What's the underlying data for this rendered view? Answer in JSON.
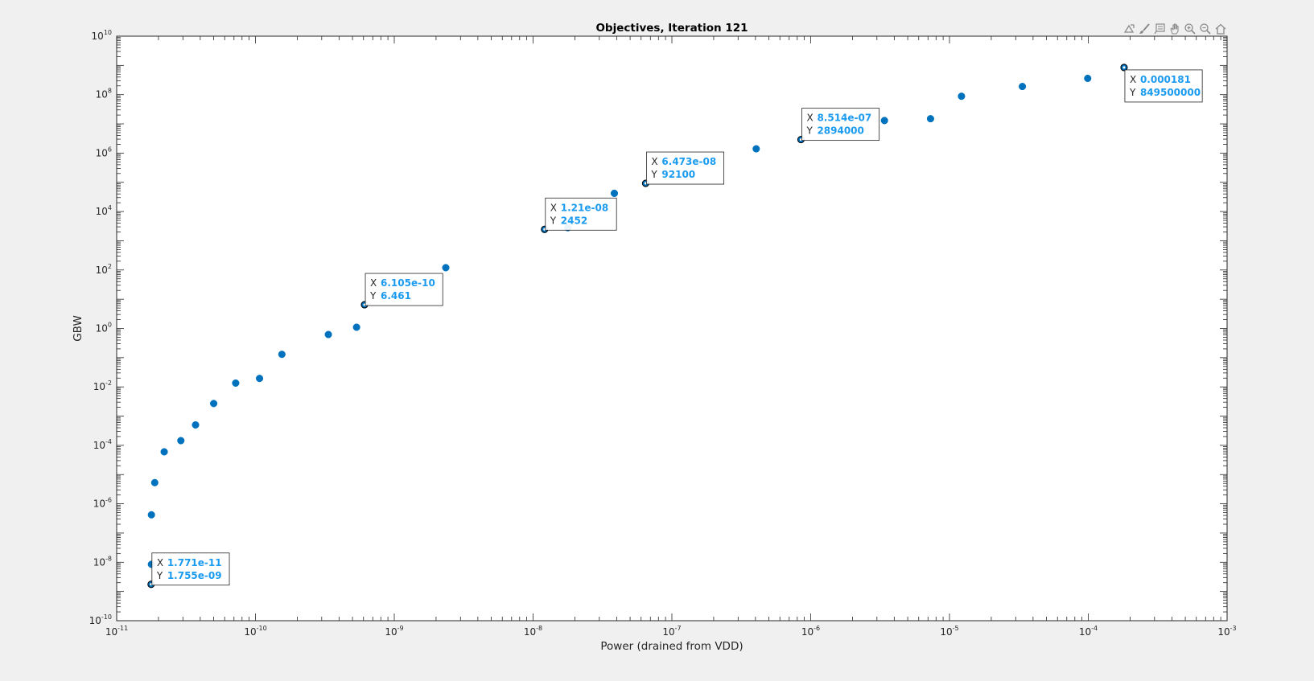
{
  "colors": {
    "background": "#f0f0f0",
    "axes_background": "#ffffff",
    "axis": "#262626",
    "marker": "#0072bd",
    "tooltip_value": "#1a9bf0"
  },
  "toolbar": {
    "icons": [
      "export-icon",
      "brush-icon",
      "datatip-icon",
      "pan-icon",
      "zoom-in-icon",
      "zoom-out-icon",
      "home-icon"
    ]
  },
  "chart_data": {
    "type": "scatter",
    "title": "Objectives, Iteration 121",
    "xlabel": "Power (drained from VDD)",
    "ylabel": "GBW",
    "xscale": "log",
    "yscale": "log",
    "xlim": [
      1e-11,
      0.001
    ],
    "ylim": [
      1e-10,
      10000000000.0
    ],
    "grid": false,
    "x_ticks": [
      {
        "base": "10",
        "exp": "-11",
        "value": 1e-11
      },
      {
        "base": "10",
        "exp": "-10",
        "value": 1e-10
      },
      {
        "base": "10",
        "exp": "-9",
        "value": 1e-09
      },
      {
        "base": "10",
        "exp": "-8",
        "value": 1e-08
      },
      {
        "base": "10",
        "exp": "-7",
        "value": 1e-07
      },
      {
        "base": "10",
        "exp": "-6",
        "value": 1e-06
      },
      {
        "base": "10",
        "exp": "-5",
        "value": 1e-05
      },
      {
        "base": "10",
        "exp": "-4",
        "value": 0.0001
      },
      {
        "base": "10",
        "exp": "-3",
        "value": 0.001
      }
    ],
    "y_ticks": [
      {
        "base": "10",
        "exp": "-10",
        "value": 1e-10
      },
      {
        "base": "10",
        "exp": "-8",
        "value": 1e-08
      },
      {
        "base": "10",
        "exp": "-6",
        "value": 1e-06
      },
      {
        "base": "10",
        "exp": "-4",
        "value": 0.0001
      },
      {
        "base": "10",
        "exp": "-2",
        "value": 0.01
      },
      {
        "base": "10",
        "exp": "0",
        "value": 1
      },
      {
        "base": "10",
        "exp": "2",
        "value": 100
      },
      {
        "base": "10",
        "exp": "4",
        "value": 10000
      },
      {
        "base": "10",
        "exp": "6",
        "value": 1000000
      },
      {
        "base": "10",
        "exp": "8",
        "value": 100000000
      },
      {
        "base": "10",
        "exp": "10",
        "value": 10000000000
      }
    ],
    "points": [
      {
        "x": 1.771e-11,
        "y": 1.755e-09
      },
      {
        "x": 1.78e-11,
        "y": 8.5e-09
      },
      {
        "x": 1.78e-11,
        "y": 4.2e-07
      },
      {
        "x": 1.88e-11,
        "y": 5.3e-06
      },
      {
        "x": 2.2e-11,
        "y": 6e-05
      },
      {
        "x": 2.9e-11,
        "y": 0.000145
      },
      {
        "x": 3.7e-11,
        "y": 0.0005
      },
      {
        "x": 5e-11,
        "y": 0.0027
      },
      {
        "x": 7.2e-11,
        "y": 0.0135
      },
      {
        "x": 1.07e-10,
        "y": 0.0195
      },
      {
        "x": 1.55e-10,
        "y": 0.13
      },
      {
        "x": 3.35e-10,
        "y": 0.62
      },
      {
        "x": 5.35e-10,
        "y": 1.1
      },
      {
        "x": 6.105e-10,
        "y": 6.461
      },
      {
        "x": 2.35e-09,
        "y": 120
      },
      {
        "x": 1.21e-08,
        "y": 2452
      },
      {
        "x": 1.78e-08,
        "y": 2800
      },
      {
        "x": 3.85e-08,
        "y": 42000
      },
      {
        "x": 6.473e-08,
        "y": 92100
      },
      {
        "x": 4.05e-07,
        "y": 1400000
      },
      {
        "x": 8.514e-07,
        "y": 2894000
      },
      {
        "x": 3.4e-06,
        "y": 13000000
      },
      {
        "x": 7.3e-06,
        "y": 15000000
      },
      {
        "x": 1.22e-05,
        "y": 88000000
      },
      {
        "x": 3.35e-05,
        "y": 190000000
      },
      {
        "x": 9.9e-05,
        "y": 360000000
      },
      {
        "x": 0.000181,
        "y": 849500000
      }
    ],
    "datatips": [
      {
        "x_text": "1.771e-11",
        "y_text": "1.755e-09",
        "x": 1.771e-11,
        "y": 1.755e-09,
        "placement": "upper-right"
      },
      {
        "x_text": "6.105e-10",
        "y_text": "6.461",
        "x": 6.105e-10,
        "y": 6.461,
        "placement": "upper-right"
      },
      {
        "x_text": "1.21e-08",
        "y_text": "2452",
        "x": 1.21e-08,
        "y": 2452,
        "placement": "upper-right"
      },
      {
        "x_text": "6.473e-08",
        "y_text": "92100",
        "x": 6.473e-08,
        "y": 92100,
        "placement": "upper-right"
      },
      {
        "x_text": "8.514e-07",
        "y_text": "2894000",
        "x": 8.514e-07,
        "y": 2894000,
        "placement": "upper-right"
      },
      {
        "x_text": "0.000181",
        "y_text": "849500000",
        "x": 0.000181,
        "y": 849500000,
        "placement": "lower-right"
      }
    ],
    "tip_labels": {
      "x": "X",
      "y": "Y"
    }
  }
}
